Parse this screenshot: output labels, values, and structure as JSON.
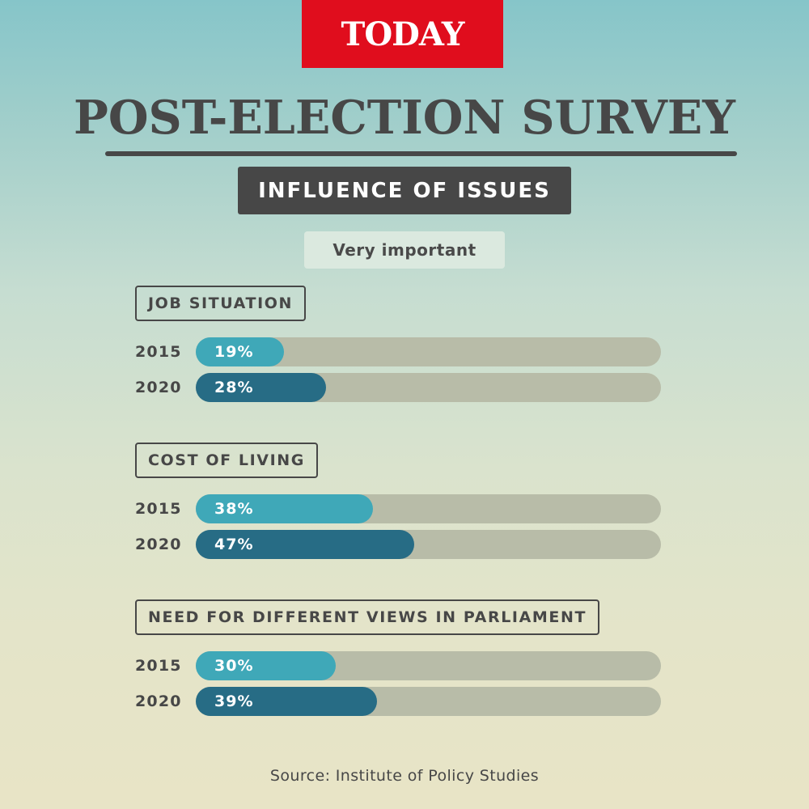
{
  "brand": "TODAY",
  "title": "POST-ELECTION SURVEY",
  "subtitle": "INFLUENCE OF ISSUES",
  "filter_label": "Very important",
  "source": "Source: Institute of Policy Studies",
  "colors": {
    "2015": "#3fa8b8",
    "2020": "#276c85",
    "track": "#b8bca8",
    "brand": "#e00d1d",
    "dark": "#474747"
  },
  "chart_data": {
    "type": "bar",
    "orientation": "horizontal",
    "value_unit": "%",
    "xlim": [
      0,
      100
    ],
    "categories": [
      "JOB SITUATION",
      "COST OF LIVING",
      "NEED FOR DIFFERENT VIEWS IN PARLIAMENT"
    ],
    "series": [
      {
        "name": "2015",
        "values": [
          19,
          38,
          30
        ],
        "labels": [
          "19%",
          "38%",
          "30%"
        ]
      },
      {
        "name": "2020",
        "values": [
          28,
          47,
          39
        ],
        "labels": [
          "28%",
          "47%",
          "39%"
        ]
      }
    ]
  }
}
